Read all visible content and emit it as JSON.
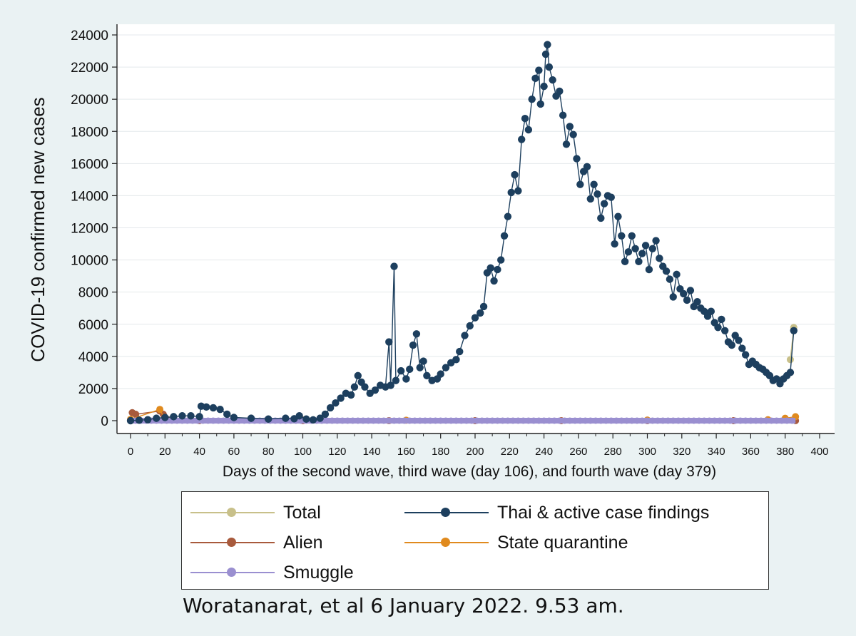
{
  "chart_data": {
    "type": "line",
    "title": "",
    "ylabel": "COVID-19 confirmed new cases",
    "xlabel": "Days of the second wave, third wave (day 106), and fourth wave (day 379)",
    "xlim": [
      0,
      400
    ],
    "ylim": [
      0,
      24000
    ],
    "x_ticks": [
      "0",
      "20",
      "40",
      "60",
      "80",
      "100",
      "120",
      "140",
      "160",
      "180",
      "200",
      "220",
      "240",
      "260",
      "280",
      "300",
      "320",
      "340",
      "360",
      "380",
      "400"
    ],
    "y_ticks": [
      "0",
      "2000",
      "4000",
      "6000",
      "8000",
      "10000",
      "12000",
      "14000",
      "16000",
      "18000",
      "20000",
      "22000",
      "24000"
    ],
    "series": [
      {
        "name": "Thai & active case findings",
        "color": "#1d3f5e",
        "points": [
          [
            0,
            0
          ],
          [
            5,
            30
          ],
          [
            10,
            60
          ],
          [
            15,
            150
          ],
          [
            20,
            200
          ],
          [
            25,
            250
          ],
          [
            30,
            300
          ],
          [
            35,
            300
          ],
          [
            40,
            250
          ],
          [
            41,
            900
          ],
          [
            44,
            850
          ],
          [
            48,
            800
          ],
          [
            52,
            700
          ],
          [
            56,
            400
          ],
          [
            60,
            200
          ],
          [
            70,
            150
          ],
          [
            80,
            100
          ],
          [
            90,
            150
          ],
          [
            95,
            120
          ],
          [
            98,
            300
          ],
          [
            102,
            100
          ],
          [
            106,
            50
          ],
          [
            110,
            150
          ],
          [
            113,
            400
          ],
          [
            116,
            800
          ],
          [
            119,
            1100
          ],
          [
            122,
            1400
          ],
          [
            125,
            1700
          ],
          [
            128,
            1600
          ],
          [
            130,
            2100
          ],
          [
            132,
            2800
          ],
          [
            134,
            2400
          ],
          [
            136,
            2100
          ],
          [
            139,
            1700
          ],
          [
            142,
            1900
          ],
          [
            145,
            2200
          ],
          [
            148,
            2100
          ],
          [
            150,
            4900
          ],
          [
            151,
            2200
          ],
          [
            153,
            9600
          ],
          [
            154,
            2500
          ],
          [
            157,
            3100
          ],
          [
            160,
            2600
          ],
          [
            162,
            3200
          ],
          [
            164,
            4700
          ],
          [
            166,
            5400
          ],
          [
            168,
            3300
          ],
          [
            170,
            3700
          ],
          [
            172,
            2800
          ],
          [
            175,
            2500
          ],
          [
            178,
            2600
          ],
          [
            180,
            2900
          ],
          [
            183,
            3300
          ],
          [
            186,
            3600
          ],
          [
            189,
            3800
          ],
          [
            191,
            4300
          ],
          [
            194,
            5300
          ],
          [
            197,
            5900
          ],
          [
            200,
            6400
          ],
          [
            203,
            6700
          ],
          [
            205,
            7100
          ],
          [
            207,
            9200
          ],
          [
            209,
            9500
          ],
          [
            211,
            8700
          ],
          [
            213,
            9400
          ],
          [
            215,
            10000
          ],
          [
            217,
            11500
          ],
          [
            219,
            12700
          ],
          [
            221,
            14200
          ],
          [
            223,
            15300
          ],
          [
            225,
            14300
          ],
          [
            227,
            17500
          ],
          [
            229,
            18800
          ],
          [
            231,
            18100
          ],
          [
            233,
            20000
          ],
          [
            235,
            21300
          ],
          [
            237,
            21800
          ],
          [
            238,
            19700
          ],
          [
            240,
            20800
          ],
          [
            241,
            22800
          ],
          [
            242,
            23400
          ],
          [
            243,
            22000
          ],
          [
            245,
            21200
          ],
          [
            247,
            20200
          ],
          [
            249,
            20500
          ],
          [
            251,
            19000
          ],
          [
            253,
            17200
          ],
          [
            255,
            18300
          ],
          [
            257,
            17800
          ],
          [
            259,
            16300
          ],
          [
            261,
            14700
          ],
          [
            263,
            15500
          ],
          [
            265,
            15800
          ],
          [
            267,
            13800
          ],
          [
            269,
            14700
          ],
          [
            271,
            14100
          ],
          [
            273,
            12600
          ],
          [
            275,
            13500
          ],
          [
            277,
            14000
          ],
          [
            279,
            13900
          ],
          [
            281,
            11000
          ],
          [
            283,
            12700
          ],
          [
            285,
            11500
          ],
          [
            287,
            9900
          ],
          [
            289,
            10500
          ],
          [
            291,
            11500
          ],
          [
            293,
            10700
          ],
          [
            295,
            9900
          ],
          [
            297,
            10400
          ],
          [
            299,
            10900
          ],
          [
            301,
            9400
          ],
          [
            303,
            10700
          ],
          [
            305,
            11200
          ],
          [
            307,
            10100
          ],
          [
            309,
            9600
          ],
          [
            311,
            9300
          ],
          [
            313,
            8800
          ],
          [
            315,
            7700
          ],
          [
            317,
            9100
          ],
          [
            319,
            8200
          ],
          [
            321,
            7900
          ],
          [
            323,
            7500
          ],
          [
            325,
            8100
          ],
          [
            327,
            7100
          ],
          [
            329,
            7400
          ],
          [
            331,
            7000
          ],
          [
            333,
            6800
          ],
          [
            335,
            6500
          ],
          [
            337,
            6800
          ],
          [
            339,
            6100
          ],
          [
            341,
            5800
          ],
          [
            343,
            6300
          ],
          [
            345,
            5600
          ],
          [
            347,
            4900
          ],
          [
            349,
            4700
          ],
          [
            351,
            5300
          ],
          [
            353,
            5000
          ],
          [
            355,
            4500
          ],
          [
            357,
            4100
          ],
          [
            359,
            3500
          ],
          [
            361,
            3700
          ],
          [
            363,
            3500
          ],
          [
            365,
            3300
          ],
          [
            367,
            3200
          ],
          [
            369,
            3000
          ],
          [
            371,
            2800
          ],
          [
            373,
            2500
          ],
          [
            375,
            2600
          ],
          [
            377,
            2300
          ],
          [
            379,
            2600
          ],
          [
            381,
            2800
          ],
          [
            383,
            3000
          ],
          [
            385,
            5600
          ]
        ]
      },
      {
        "name": "Total",
        "color": "#c8c08a",
        "points": [
          [
            383,
            3800
          ],
          [
            385,
            5800
          ]
        ]
      },
      {
        "name": "Alien",
        "color": "#a85a3c",
        "points": [
          [
            1,
            500
          ],
          [
            3,
            400
          ],
          [
            17,
            600
          ],
          [
            19,
            400
          ],
          [
            21,
            100
          ],
          [
            40,
            0
          ],
          [
            100,
            0
          ],
          [
            150,
            0
          ],
          [
            200,
            0
          ],
          [
            250,
            0
          ],
          [
            300,
            0
          ],
          [
            350,
            0
          ],
          [
            386,
            0
          ]
        ]
      },
      {
        "name": "State quarantine",
        "color": "#e08a1e",
        "points": [
          [
            0,
            80
          ],
          [
            17,
            700
          ],
          [
            20,
            60
          ],
          [
            100,
            40
          ],
          [
            160,
            30
          ],
          [
            300,
            40
          ],
          [
            370,
            60
          ],
          [
            380,
            150
          ],
          [
            386,
            250
          ]
        ]
      },
      {
        "name": "Smuggle",
        "color": "#9a8fd0",
        "points": [
          [
            0,
            0
          ],
          [
            386,
            0
          ]
        ]
      }
    ],
    "legend": {
      "position": "bottom",
      "entries": [
        "Total",
        "Thai & active case findings",
        "Alien",
        "State quarantine",
        "Smuggle"
      ]
    }
  },
  "credit": "Woratanarat, et al 6 January 2022. 9.53 am."
}
